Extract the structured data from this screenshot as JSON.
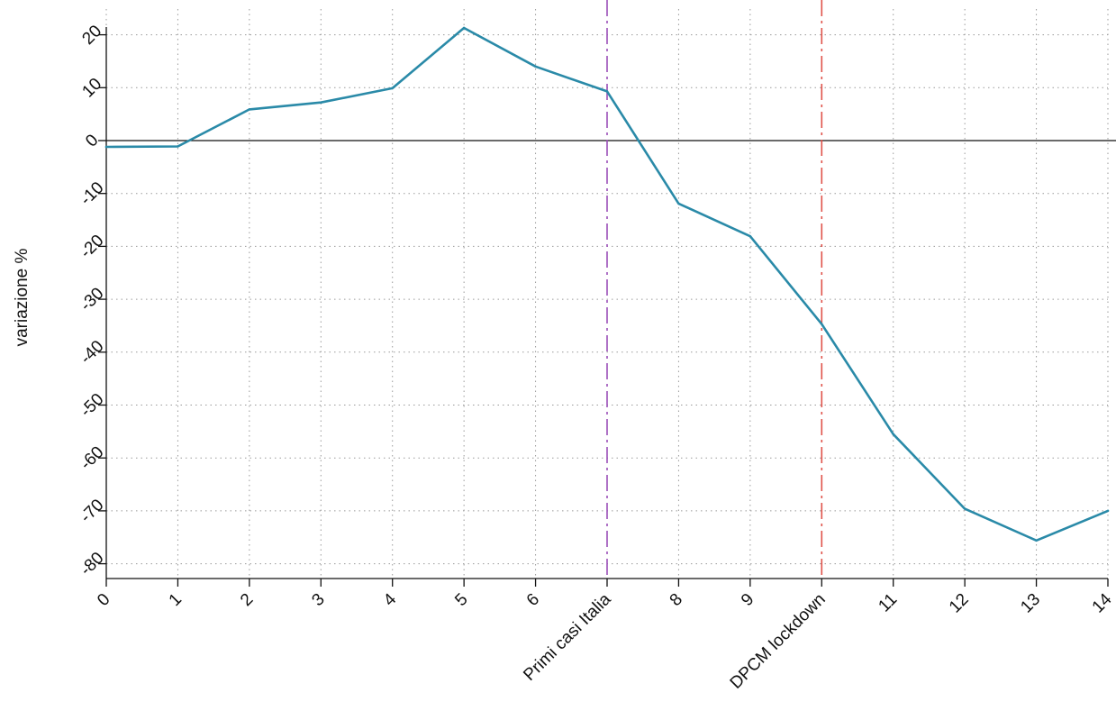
{
  "chart_data": {
    "type": "line",
    "title": "",
    "xlabel": "",
    "ylabel": "variazione %",
    "xlim": [
      0,
      14
    ],
    "ylim": [
      -82,
      21
    ],
    "yticks": [
      20,
      10,
      0,
      -10,
      -20,
      -30,
      -40,
      -50,
      -60,
      -70,
      -80
    ],
    "xticks": [
      {
        "x": 0,
        "label": "0"
      },
      {
        "x": 1,
        "label": "1"
      },
      {
        "x": 2,
        "label": "2"
      },
      {
        "x": 3,
        "label": "3"
      },
      {
        "x": 4,
        "label": "4"
      },
      {
        "x": 5,
        "label": "5"
      },
      {
        "x": 6,
        "label": "6"
      },
      {
        "x": 7,
        "label": "Primi casi Italia"
      },
      {
        "x": 8,
        "label": "8"
      },
      {
        "x": 9,
        "label": "9"
      },
      {
        "x": 10,
        "label": "DPCM lockdown"
      },
      {
        "x": 11,
        "label": "11"
      },
      {
        "x": 12,
        "label": "12"
      },
      {
        "x": 13,
        "label": "13"
      },
      {
        "x": 14,
        "label": "14"
      }
    ],
    "grid": true,
    "series": [
      {
        "color": "#2a8aa8",
        "x": [
          0,
          1,
          2,
          3,
          4,
          5,
          6,
          7,
          8,
          9,
          10,
          11,
          12,
          13,
          14
        ],
        "y": [
          -1.2,
          -1.1,
          5.9,
          7.2,
          9.9,
          21.3,
          14,
          9.3,
          -11.9,
          -18.1,
          -34.7,
          -55.5,
          -69.6,
          -75.6,
          -70
        ]
      }
    ],
    "vlines": [
      {
        "x": 7,
        "color": "#9b4fb8",
        "style": "dashdot"
      },
      {
        "x": 10,
        "color": "#e0524a",
        "style": "dashdot"
      }
    ],
    "hline": {
      "y": 0,
      "color": "#111111"
    }
  }
}
